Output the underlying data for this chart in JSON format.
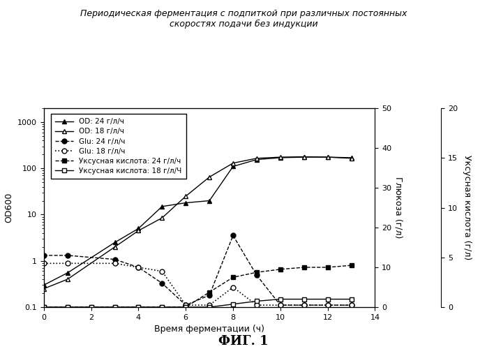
{
  "title_line1": "Периодическая ферментация с подпиткой при различных постоянных",
  "title_line2": "скоростях подачи без индукции",
  "xlabel": "Время ферментации (ч)",
  "ylabel_left": "OD600",
  "ylabel_right1": "Глюкоза (г/л)",
  "ylabel_right2": "Уксусная кислота (г/л)",
  "fig_label": "ФИГ. 1",
  "xlim": [
    0,
    14
  ],
  "ylim_log": [
    0.1,
    2000
  ],
  "ylim_glu": [
    0,
    50
  ],
  "ylim_acid": [
    0,
    20
  ],
  "OD_24_x": [
    0,
    1,
    3,
    4,
    5,
    6,
    7,
    8,
    9,
    10,
    11,
    12,
    13
  ],
  "OD_24_y": [
    0.3,
    0.55,
    2.5,
    5,
    15,
    18,
    20,
    110,
    155,
    170,
    175,
    175,
    170
  ],
  "OD_18_x": [
    0,
    1,
    3,
    4,
    5,
    6,
    7,
    8,
    9,
    10,
    11,
    12,
    13
  ],
  "OD_18_y": [
    0.25,
    0.4,
    2.0,
    4.5,
    8.5,
    25,
    65,
    130,
    165,
    175,
    178,
    175,
    165
  ],
  "Glu_24_x": [
    0,
    1,
    3,
    4,
    5,
    6,
    7,
    8,
    9,
    10,
    11,
    12,
    13
  ],
  "Glu_24_y": [
    13,
    13,
    12,
    10,
    6,
    0.5,
    3,
    18,
    8,
    0.5,
    0.5,
    0.5,
    0.5
  ],
  "Glu_18_x": [
    0,
    1,
    3,
    4,
    5,
    6,
    7,
    8,
    9,
    10,
    11,
    12,
    13
  ],
  "Glu_18_y": [
    11,
    11,
    11,
    10,
    9,
    0.5,
    0.5,
    5,
    0.5,
    0.5,
    0.5,
    0.5,
    0.5
  ],
  "Acid_24_x": [
    0,
    1,
    2,
    3,
    4,
    5,
    6,
    7,
    8,
    9,
    10,
    11,
    12,
    13
  ],
  "Acid_24_y": [
    0,
    0,
    0,
    0,
    0,
    0,
    0,
    1.5,
    3.0,
    3.5,
    3.8,
    4.0,
    4.0,
    4.2
  ],
  "Acid_18_x": [
    0,
    1,
    2,
    3,
    4,
    5,
    6,
    7,
    8,
    9,
    10,
    11,
    12,
    13
  ],
  "Acid_18_y": [
    0,
    0,
    0,
    0,
    0,
    0,
    0,
    0,
    0.3,
    0.6,
    0.8,
    0.8,
    0.8,
    0.8
  ],
  "legend_labels": [
    "OD: 24 г/л/ч",
    "OD: 18 г/л/ч",
    "Glu: 24 г/л/ч",
    "Glu: 18 г/л/ч",
    "Уксусная кислота: 24 г/л/ч",
    "Уксусная кислота: 18 г/л/Ч"
  ],
  "color_black": "#000000",
  "bg_color": "#ffffff"
}
